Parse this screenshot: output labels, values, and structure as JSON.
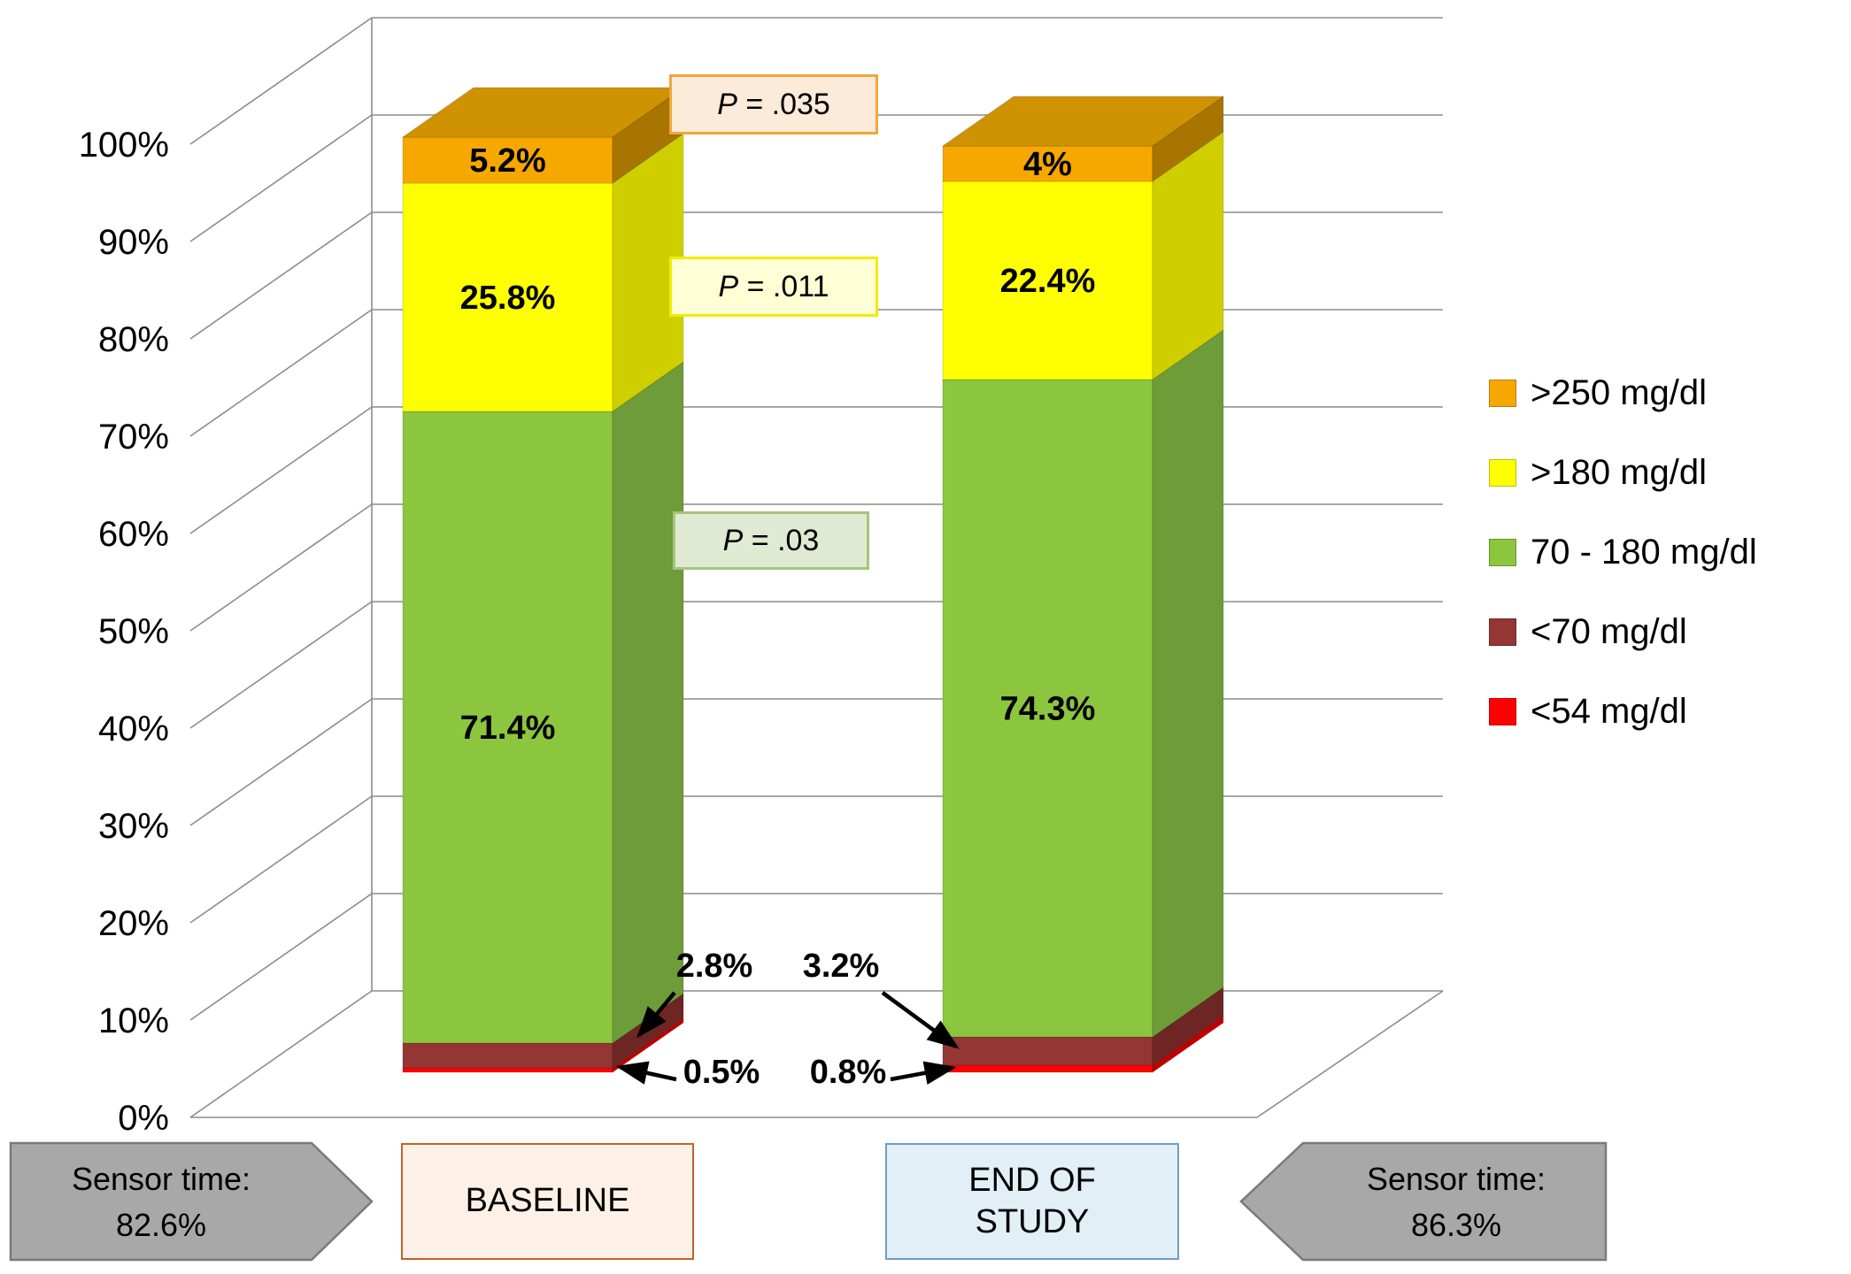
{
  "chart_data": {
    "type": "stacked-bar-3d",
    "categories": [
      "BASELINE",
      "END OF STUDY"
    ],
    "value_axis": {
      "min": 0,
      "max": 100,
      "ticks": [
        "0%",
        "10%",
        "20%",
        "30%",
        "40%",
        "50%",
        "60%",
        "70%",
        "80%",
        "90%",
        "100%"
      ]
    },
    "series": [
      {
        "name": "<54 mg/dl",
        "values": [
          0.5,
          0.8
        ],
        "labels": [
          "0.5%",
          "0.8%"
        ],
        "color": "#ff0000",
        "side_color": "#bf0000",
        "placement": "callout"
      },
      {
        "name": "<70 mg/dl",
        "values": [
          2.8,
          3.2
        ],
        "labels": [
          "2.8%",
          "3.2%"
        ],
        "color": "#943634",
        "side_color": "#6e2625",
        "placement": "callout"
      },
      {
        "name": "70 - 180 mg/dl",
        "values": [
          71.4,
          74.3
        ],
        "labels": [
          "71.4%",
          "74.3%"
        ],
        "color": "#8cc63f",
        "side_color": "#6d9c38",
        "placement": "inside"
      },
      {
        "name": ">180 mg/dl",
        "values": [
          25.8,
          22.4
        ],
        "labels": [
          "25.8%",
          "22.4%"
        ],
        "color": "#ffff00",
        "side_color": "#cfcf00",
        "placement": "inside"
      },
      {
        "name": ">250 mg/dl",
        "values": [
          5.2,
          4.0
        ],
        "labels": [
          "5.2%",
          "4%"
        ],
        "color": "#f6a800",
        "side_color": "#a87500",
        "top_color": "#cf9200",
        "placement": "inside"
      }
    ],
    "legend": {
      "position": "right",
      "order_top_to_bottom": [
        ">250 mg/dl",
        ">180 mg/dl",
        "70 - 180 mg/dl",
        "<70 mg/dl",
        "<54 mg/dl"
      ]
    },
    "annotations": {
      "p_values": [
        {
          "label": "P = .035",
          "bg": "#fdebd9",
          "border": "#f2a63b"
        },
        {
          "label": "P = .011",
          "bg": "#ffffd6",
          "border": "#f0ed00"
        },
        {
          "label": "P = .03",
          "bg": "#e0e9d1",
          "border": "#a6c47c"
        }
      ]
    },
    "footer": {
      "category_boxes": [
        {
          "label": "BASELINE",
          "bg": "#fdf1e7",
          "border": "#c0622a"
        },
        {
          "label": "END OF STUDY",
          "bg": "#e3eff6",
          "border": "#6b9dc7"
        }
      ],
      "sensor_badges": [
        {
          "line1": "Sensor time:",
          "line2": "82.6%",
          "direction": "right"
        },
        {
          "line1": "Sensor time:",
          "line2": "86.3%",
          "direction": "left"
        }
      ]
    }
  }
}
